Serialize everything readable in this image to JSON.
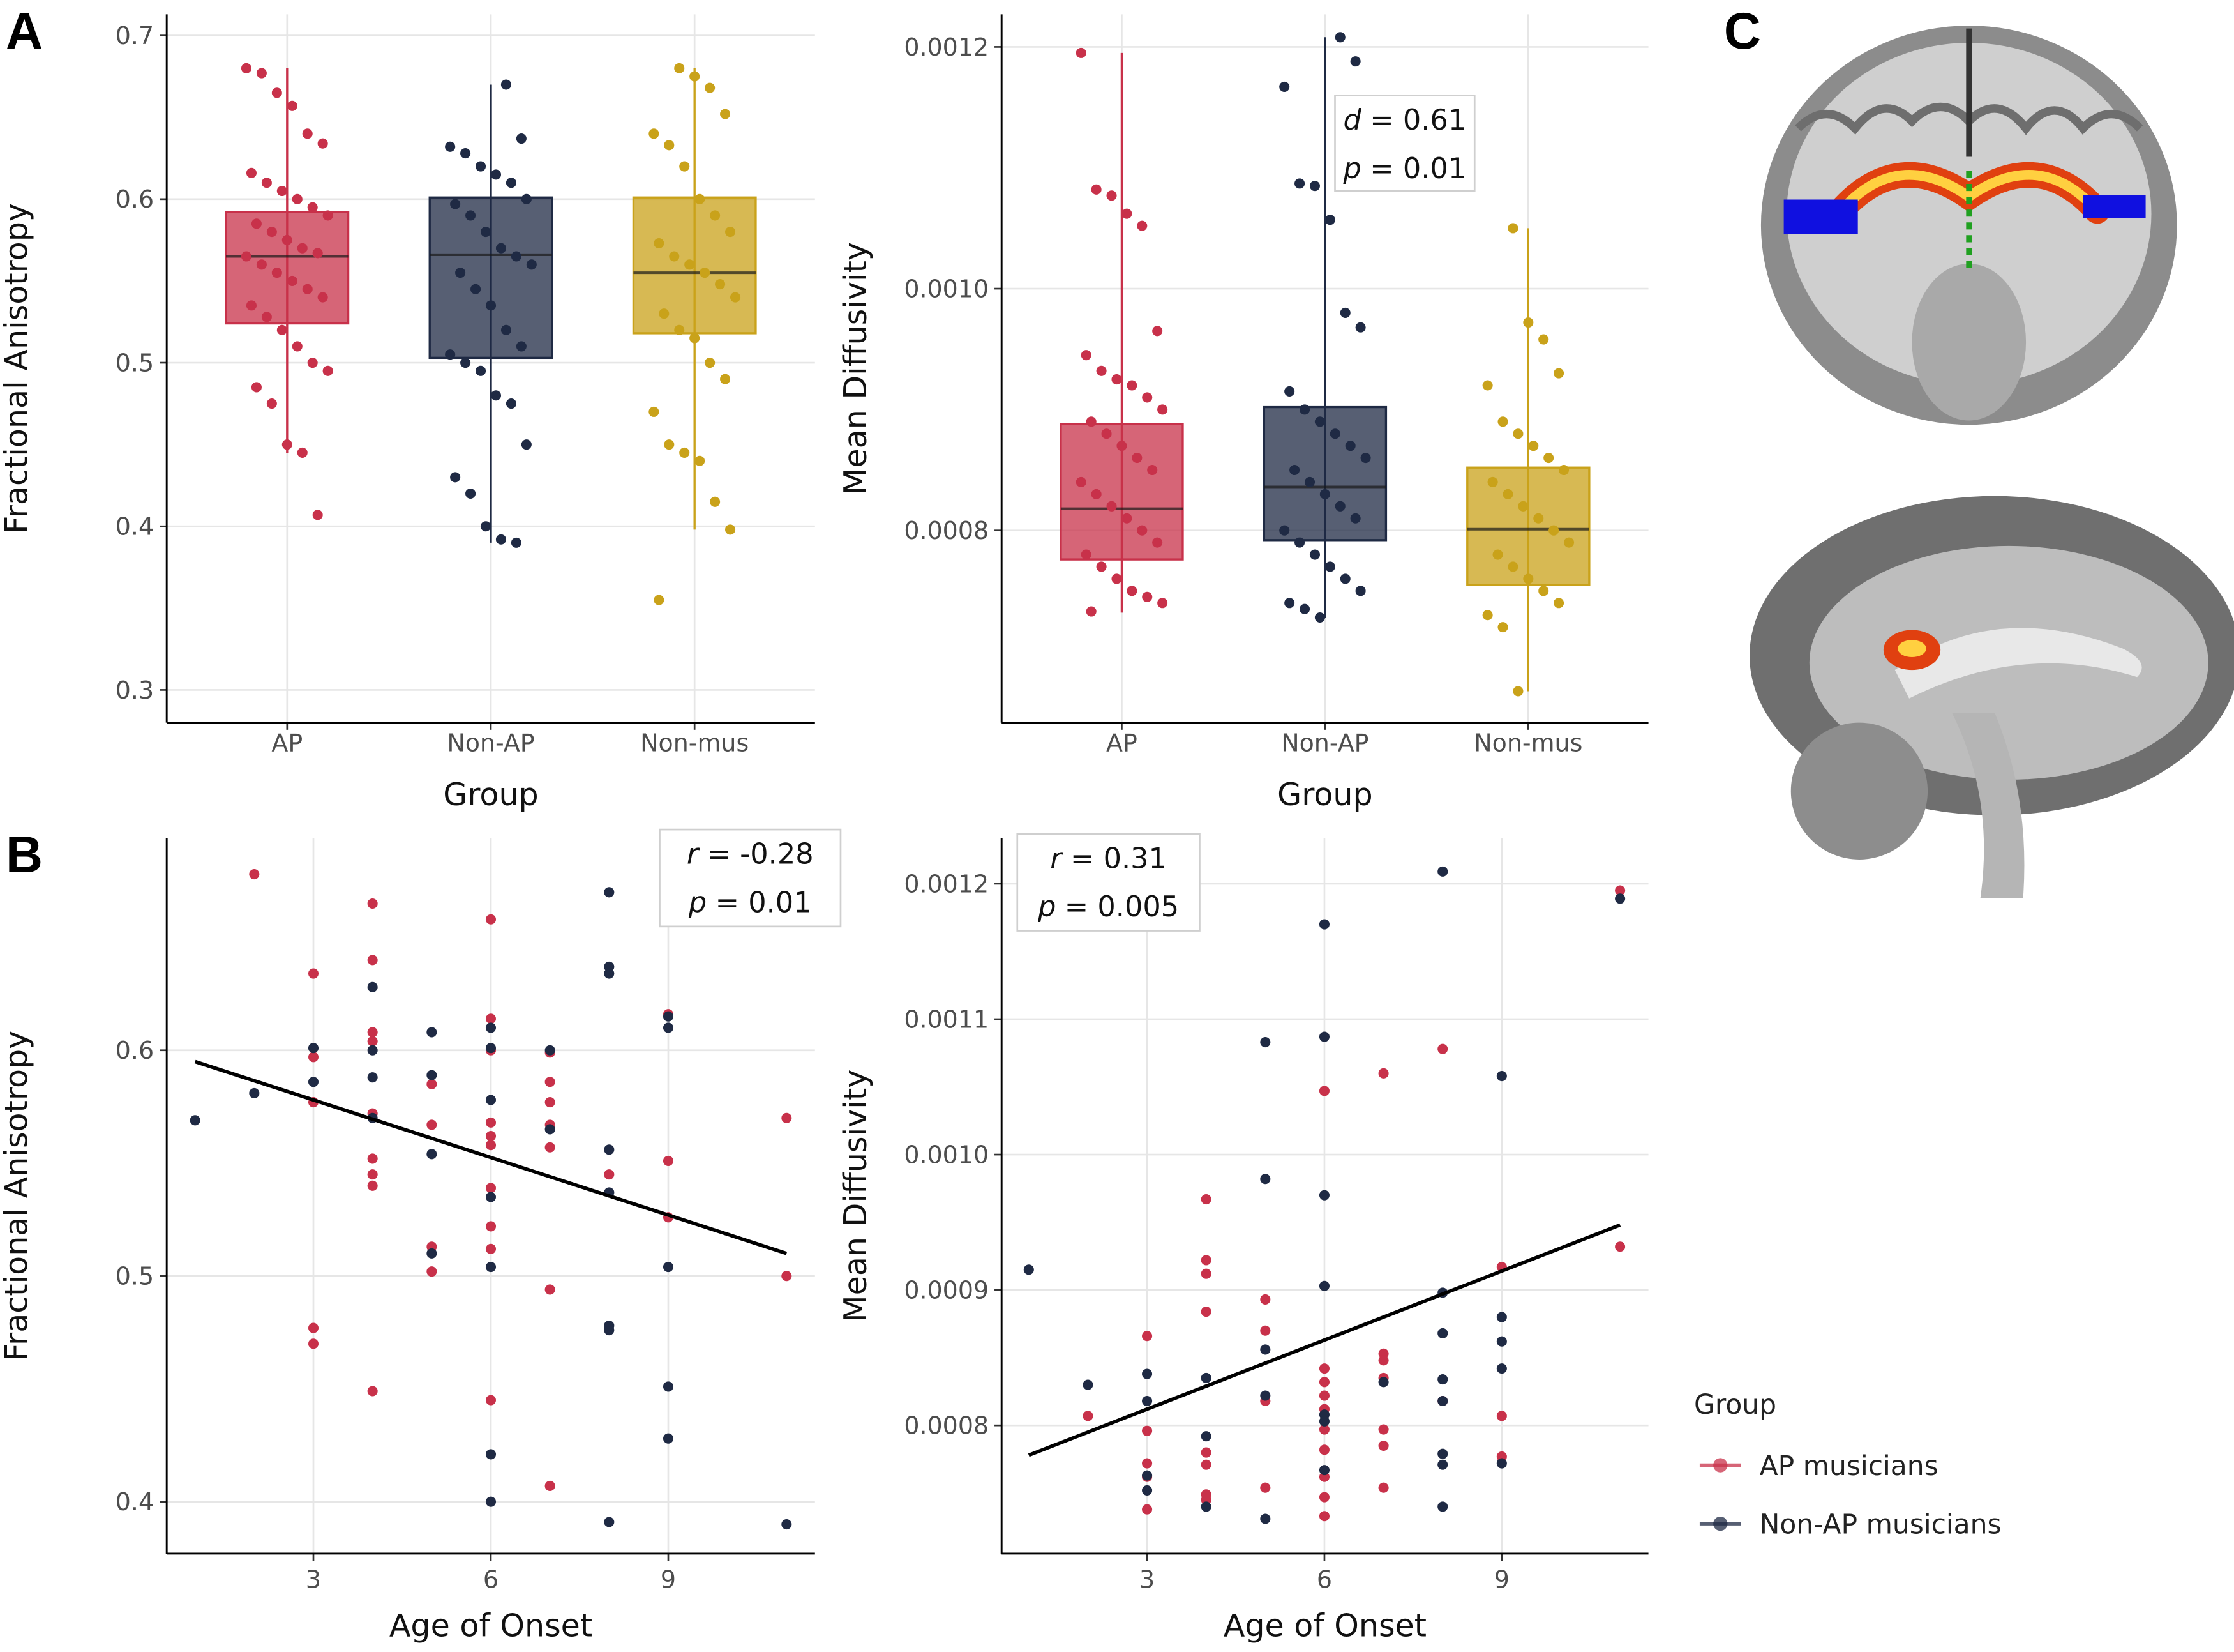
{
  "chart_data": [
    {
      "type": "box",
      "panel_label": "A",
      "xlabel": "Group",
      "ylabel": "Fractional Anisotropy",
      "categories": [
        "AP",
        "Non-AP",
        "Non-mus"
      ],
      "colors": [
        "#c8314a",
        "#1f2a44",
        "#c9a21a"
      ],
      "boxes": [
        {
          "q1": 0.524,
          "median": 0.565,
          "q3": 0.592,
          "whisker_low": 0.445,
          "whisker_high": 0.68
        },
        {
          "q1": 0.503,
          "median": 0.566,
          "q3": 0.601,
          "whisker_low": 0.39,
          "whisker_high": 0.67
        },
        {
          "q1": 0.518,
          "median": 0.555,
          "q3": 0.601,
          "whisker_low": 0.398,
          "whisker_high": 0.68
        }
      ],
      "points": [
        [
          0.68,
          0.677,
          0.665,
          0.657,
          0.64,
          0.634,
          0.616,
          0.61,
          0.605,
          0.6,
          0.595,
          0.59,
          0.585,
          0.58,
          0.575,
          0.57,
          0.567,
          0.565,
          0.56,
          0.555,
          0.55,
          0.545,
          0.54,
          0.535,
          0.528,
          0.52,
          0.51,
          0.5,
          0.495,
          0.485,
          0.475,
          0.45,
          0.445,
          0.407
        ],
        [
          0.67,
          0.637,
          0.632,
          0.628,
          0.62,
          0.615,
          0.61,
          0.6,
          0.597,
          0.59,
          0.58,
          0.57,
          0.565,
          0.56,
          0.555,
          0.545,
          0.535,
          0.52,
          0.51,
          0.505,
          0.5,
          0.495,
          0.48,
          0.475,
          0.45,
          0.43,
          0.42,
          0.4,
          0.392,
          0.39
        ],
        [
          0.68,
          0.675,
          0.668,
          0.652,
          0.64,
          0.633,
          0.62,
          0.6,
          0.59,
          0.58,
          0.573,
          0.565,
          0.56,
          0.555,
          0.548,
          0.54,
          0.53,
          0.52,
          0.515,
          0.5,
          0.49,
          0.47,
          0.45,
          0.445,
          0.44,
          0.415,
          0.398,
          0.355
        ]
      ],
      "ylim": [
        0.28,
        0.713
      ],
      "yticks": [
        0.3,
        0.4,
        0.5,
        0.6,
        0.7
      ],
      "grid": true
    },
    {
      "type": "box",
      "xlabel": "Group",
      "ylabel": "Mean Diffusivity",
      "categories": [
        "AP",
        "Non-AP",
        "Non-mus"
      ],
      "colors": [
        "#c8314a",
        "#1f2a44",
        "#c9a21a"
      ],
      "boxes": [
        {
          "q1": 0.000776,
          "median": 0.000818,
          "q3": 0.000888,
          "whisker_low": 0.000732,
          "whisker_high": 0.001195
        },
        {
          "q1": 0.000792,
          "median": 0.000836,
          "q3": 0.000902,
          "whisker_low": 0.000728,
          "whisker_high": 0.001208
        },
        {
          "q1": 0.000755,
          "median": 0.000801,
          "q3": 0.000852,
          "whisker_low": 0.000667,
          "whisker_high": 0.00105
        }
      ],
      "points": [
        [
          0.001195,
          0.001082,
          0.001077,
          0.001062,
          0.001052,
          0.000965,
          0.000945,
          0.000932,
          0.000925,
          0.00092,
          0.00091,
          0.0009,
          0.00089,
          0.00088,
          0.00087,
          0.00086,
          0.00085,
          0.00084,
          0.00083,
          0.00082,
          0.00081,
          0.0008,
          0.00079,
          0.00078,
          0.00077,
          0.00076,
          0.00075,
          0.000745,
          0.00074,
          0.000733
        ],
        [
          0.001208,
          0.001188,
          0.001167,
          0.001087,
          0.001085,
          0.001057,
          0.00098,
          0.000968,
          0.000915,
          0.0009,
          0.00089,
          0.00088,
          0.00087,
          0.00086,
          0.00085,
          0.00084,
          0.00083,
          0.00082,
          0.00081,
          0.0008,
          0.00079,
          0.00078,
          0.00077,
          0.00076,
          0.00075,
          0.00074,
          0.000735,
          0.000728
        ],
        [
          0.00105,
          0.000972,
          0.000958,
          0.00093,
          0.00092,
          0.00089,
          0.00088,
          0.00087,
          0.00086,
          0.00085,
          0.00084,
          0.00083,
          0.00082,
          0.00081,
          0.0008,
          0.00079,
          0.00078,
          0.00077,
          0.00076,
          0.00075,
          0.00074,
          0.00073,
          0.00072,
          0.000667
        ]
      ],
      "annotation": [
        {
          "symbol": "d",
          "text": "= 0.61"
        },
        {
          "symbol": "p",
          "text": "= 0.01"
        }
      ],
      "ylim": [
        0.000641,
        0.001227
      ],
      "yticks": [
        0.0008,
        {
          "value": 0.001,
          "label": "0.0010"
        },
        0.0012
      ],
      "grid": true
    },
    {
      "type": "scatter",
      "panel_label": "B",
      "xlabel": "Age of Onset",
      "ylabel": "Fractional Anisotropy",
      "series": [
        {
          "color": "#c8314a",
          "x": [
            2,
            3,
            3,
            3,
            3,
            3,
            4,
            4,
            4,
            4,
            4,
            4,
            4,
            4,
            4,
            5,
            5,
            5,
            5,
            6,
            6,
            6,
            6,
            6,
            6,
            6,
            6,
            6,
            6,
            7,
            7,
            7,
            7,
            7,
            7,
            7,
            8,
            9,
            9,
            9,
            11,
            11
          ],
          "values": [
            0.678,
            0.634,
            0.597,
            0.577,
            0.477,
            0.47,
            0.665,
            0.64,
            0.608,
            0.604,
            0.572,
            0.552,
            0.545,
            0.54,
            0.449,
            0.585,
            0.567,
            0.513,
            0.502,
            0.658,
            0.614,
            0.6,
            0.568,
            0.562,
            0.558,
            0.539,
            0.522,
            0.512,
            0.445,
            0.599,
            0.586,
            0.577,
            0.567,
            0.557,
            0.494,
            0.407,
            0.545,
            0.616,
            0.551,
            0.526,
            0.57,
            0.5
          ]
        },
        {
          "color": "#1f2a44",
          "x": [
            1,
            2,
            3,
            3,
            4,
            4,
            4,
            4,
            5,
            5,
            5,
            5,
            6,
            6,
            6,
            6,
            6,
            6,
            6,
            7,
            7,
            8,
            8,
            8,
            8,
            8,
            8,
            8,
            8,
            9,
            9,
            9,
            9,
            9,
            11
          ],
          "values": [
            0.569,
            0.581,
            0.601,
            0.586,
            0.628,
            0.6,
            0.588,
            0.57,
            0.608,
            0.589,
            0.554,
            0.51,
            0.61,
            0.601,
            0.578,
            0.535,
            0.504,
            0.421,
            0.4,
            0.6,
            0.565,
            0.67,
            0.637,
            0.634,
            0.556,
            0.537,
            0.478,
            0.476,
            0.391,
            0.615,
            0.61,
            0.504,
            0.451,
            0.428,
            0.39
          ]
        }
      ],
      "fit_line": {
        "x": [
          1,
          11
        ],
        "values": [
          0.595,
          0.51
        ]
      },
      "annotation": [
        {
          "symbol": "r",
          "text": "= -0.28"
        },
        {
          "symbol": "p",
          "text": "= 0.01"
        }
      ],
      "xlim": [
        0.52,
        11.48
      ],
      "xticks": [
        3,
        6,
        9
      ],
      "ylim": [
        0.377,
        0.694
      ],
      "yticks": [
        0.4,
        0.5,
        0.6
      ],
      "grid": true
    },
    {
      "type": "scatter",
      "xlabel": "Age of Onset",
      "ylabel": "Mean Diffusivity",
      "legend_title": "Group",
      "series": [
        {
          "name": "AP musicians",
          "color": "#c8314a",
          "x": [
            2,
            3,
            3,
            3,
            3,
            3,
            4,
            4,
            4,
            4,
            4,
            4,
            4,
            4,
            5,
            5,
            5,
            5,
            6,
            6,
            6,
            6,
            6,
            6,
            6,
            6,
            6,
            6,
            7,
            7,
            7,
            7,
            7,
            7,
            7,
            8,
            8,
            9,
            9,
            9,
            11,
            11
          ],
          "values": [
            0.000807,
            0.000866,
            0.000796,
            0.000772,
            0.000762,
            0.000738,
            0.000967,
            0.000922,
            0.000912,
            0.000884,
            0.00078,
            0.000771,
            0.000749,
            0.000745,
            0.000893,
            0.00087,
            0.000818,
            0.000754,
            0.001047,
            0.000842,
            0.000832,
            0.000822,
            0.000812,
            0.000797,
            0.000782,
            0.000762,
            0.000747,
            0.000733,
            0.00106,
            0.000853,
            0.000848,
            0.000835,
            0.000797,
            0.000785,
            0.000754,
            0.001078,
            0.000818,
            0.000917,
            0.000807,
            0.000777,
            0.001195,
            0.000932
          ]
        },
        {
          "name": "Non-AP musicians",
          "color": "#1f2a44",
          "x": [
            1,
            2,
            3,
            3,
            3,
            3,
            4,
            4,
            4,
            5,
            5,
            5,
            5,
            5,
            6,
            6,
            6,
            6,
            6,
            6,
            6,
            7,
            8,
            8,
            8,
            8,
            8,
            8,
            8,
            8,
            9,
            9,
            9,
            9,
            9,
            11
          ],
          "values": [
            0.000915,
            0.00083,
            0.000838,
            0.000818,
            0.000763,
            0.000752,
            0.000835,
            0.000792,
            0.00074,
            0.001083,
            0.000982,
            0.000856,
            0.000822,
            0.000731,
            0.00117,
            0.001087,
            0.00097,
            0.000903,
            0.000808,
            0.000803,
            0.000767,
            0.000832,
            0.001209,
            0.000898,
            0.000868,
            0.000834,
            0.000818,
            0.000779,
            0.000771,
            0.00074,
            0.001058,
            0.00088,
            0.000862,
            0.000842,
            0.000772,
            0.001189
          ]
        }
      ],
      "fit_line": {
        "x": [
          1,
          11
        ],
        "values": [
          0.000778,
          0.000948
        ]
      },
      "annotation": [
        {
          "symbol": "r",
          "text": "= 0.31"
        },
        {
          "symbol": "p",
          "text": "= 0.005"
        }
      ],
      "xlim": [
        0.54,
        11.48
      ],
      "xticks": [
        3,
        6,
        9
      ],
      "ylim": [
        0.0007053,
        0.0012337
      ],
      "yticks": [
        0.0008,
        0.0009,
        {
          "value": 0.001,
          "label": "0.0010"
        },
        0.0011,
        0.0012
      ],
      "grid": true
    }
  ],
  "panel_c": {
    "label": "C"
  }
}
